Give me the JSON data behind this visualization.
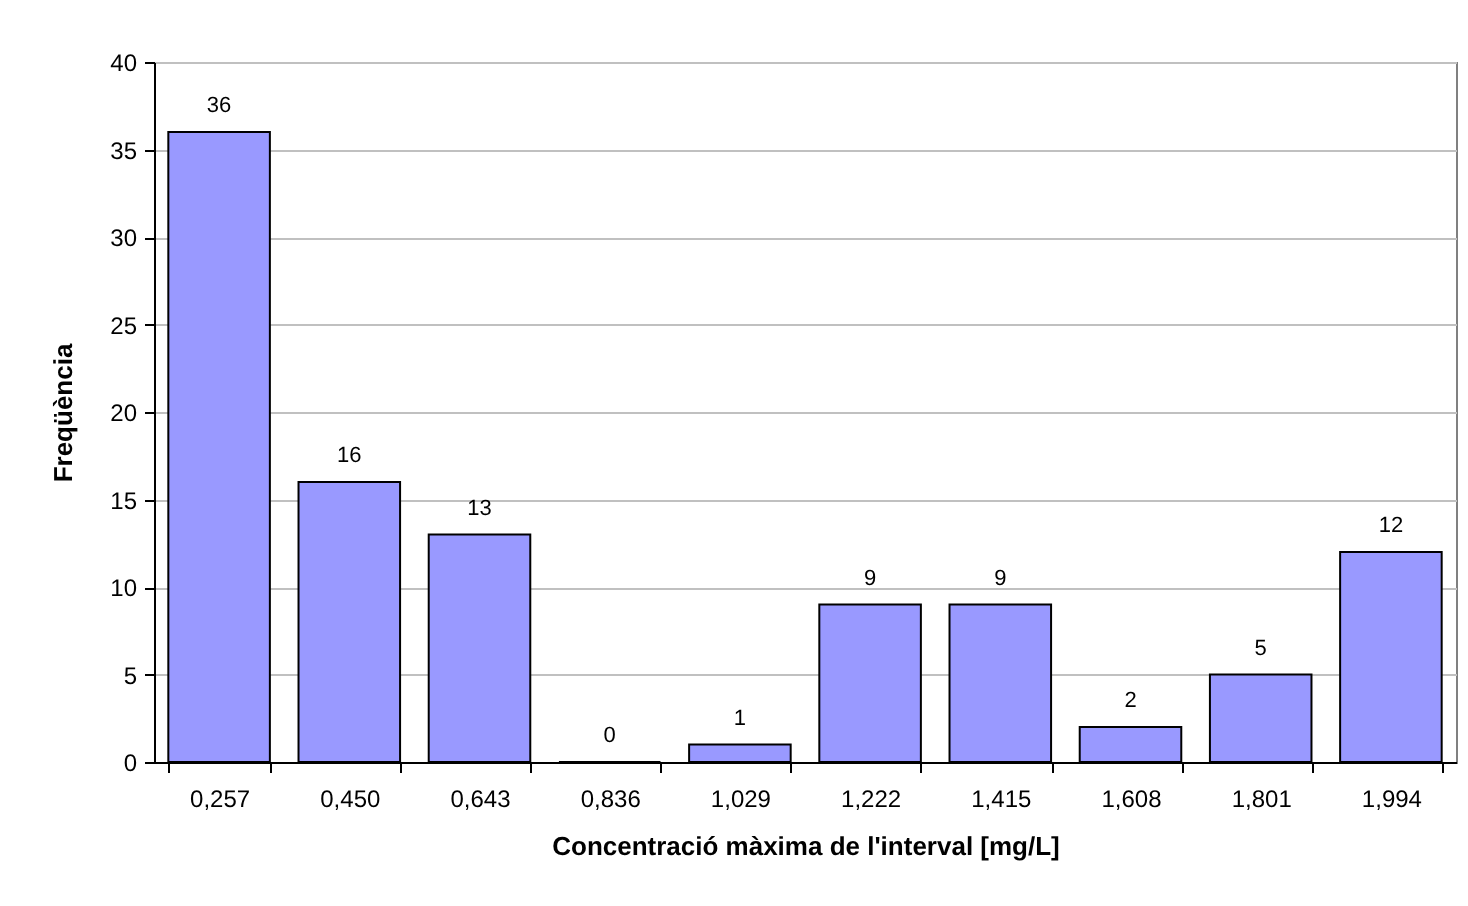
{
  "chart_data": {
    "type": "bar",
    "xlabel": "Concentració màxima de l'interval [mg/L]",
    "ylabel": "Freqüència",
    "categories": [
      "0,257",
      "0,450",
      "0,643",
      "0,836",
      "1,029",
      "1,222",
      "1,415",
      "1,608",
      "1,801",
      "1,994"
    ],
    "values": [
      36,
      16,
      13,
      0,
      1,
      9,
      9,
      2,
      5,
      12
    ],
    "color": "#9999ff",
    "ylim": [
      0,
      40
    ],
    "yticks": [
      0,
      5,
      10,
      15,
      20,
      25,
      30,
      35,
      40
    ],
    "grid": "y",
    "data_labels": true
  }
}
